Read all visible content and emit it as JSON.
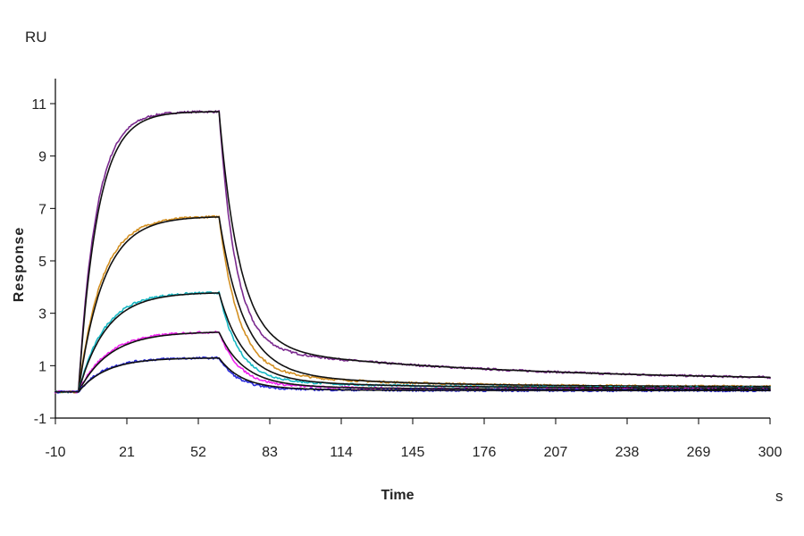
{
  "chart_data": {
    "type": "line",
    "title": "",
    "xlabel": "Time",
    "ylabel": "Response",
    "y_unit": "RU",
    "x_unit": "s",
    "xlim": [
      -10,
      300
    ],
    "ylim": [
      -1,
      12
    ],
    "x_ticks": [
      -10,
      21,
      52,
      83,
      114,
      145,
      176,
      207,
      238,
      269,
      300
    ],
    "x_tick_labels": [
      "-10",
      "21",
      "52",
      "83",
      "114",
      "145",
      "176",
      "207",
      "238",
      "269",
      "300"
    ],
    "y_ticks": [
      -1,
      1,
      3,
      5,
      7,
      9,
      11
    ],
    "y_tick_labels": [
      "-1",
      "1",
      "3",
      "5",
      "7",
      "9",
      "11"
    ],
    "grid": false,
    "legend": "none",
    "injection_start": 0,
    "injection_end": 61,
    "series": [
      {
        "color": "#7b2a8f",
        "fit_color": "#111111",
        "plateau": 10.7,
        "baseline_end": 0.4,
        "kon": 0.13,
        "fast_frac": 0.87,
        "koff_fast": 0.14,
        "koff_slow": 0.003
      },
      {
        "color": "#d39022",
        "fit_color": "#111111",
        "plateau": 6.7,
        "baseline_end": 0.2,
        "kon": 0.1,
        "fast_frac": 0.9,
        "koff_fast": 0.12,
        "koff_slow": 0.006
      },
      {
        "color": "#17b8c4",
        "fit_color": "#111111",
        "plateau": 3.8,
        "baseline_end": 0.15,
        "kon": 0.09,
        "fast_frac": 0.9,
        "koff_fast": 0.12,
        "koff_slow": 0.006
      },
      {
        "color": "#ee22ee",
        "fit_color": "#111111",
        "plateau": 2.3,
        "baseline_end": 0.1,
        "kon": 0.08,
        "fast_frac": 0.9,
        "koff_fast": 0.12,
        "koff_slow": 0.008
      },
      {
        "color": "#2a2adb",
        "fit_color": "#111111",
        "plateau": 1.3,
        "baseline_end": 0.05,
        "kon": 0.09,
        "fast_frac": 0.9,
        "koff_fast": 0.13,
        "koff_slow": 0.01
      }
    ]
  }
}
